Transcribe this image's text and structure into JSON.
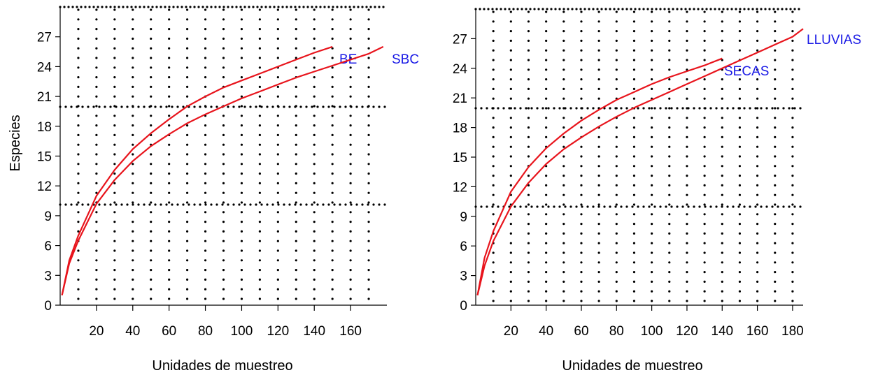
{
  "chart_data": [
    {
      "type": "line",
      "title": "",
      "xlabel": "Unidades de muestreo",
      "ylabel": "Especies",
      "xlim": [
        0,
        180
      ],
      "ylim": [
        0,
        30
      ],
      "xticks": [
        20,
        40,
        60,
        80,
        100,
        120,
        140,
        160
      ],
      "yticks": [
        0,
        3,
        6,
        9,
        12,
        15,
        18,
        21,
        24,
        27
      ],
      "grid": "dotted",
      "series_color": "#e8141c",
      "label_color": "#1a1ae6",
      "series": [
        {
          "name": "BE",
          "x": [
            1,
            5,
            10,
            20,
            30,
            40,
            50,
            60,
            70,
            80,
            90,
            100,
            110,
            120,
            130,
            140,
            150
          ],
          "y": [
            1,
            4.5,
            7,
            11,
            13.6,
            15.7,
            17.3,
            18.7,
            20,
            21,
            21.9,
            22.6,
            23.3,
            24,
            24.7,
            25.4,
            26
          ]
        },
        {
          "name": "SBC",
          "x": [
            1,
            5,
            10,
            20,
            30,
            40,
            50,
            60,
            70,
            80,
            90,
            100,
            110,
            120,
            130,
            140,
            150,
            160,
            170,
            178
          ],
          "y": [
            1,
            4.2,
            6.5,
            10.2,
            12.6,
            14.5,
            16,
            17.2,
            18.3,
            19.2,
            20,
            20.8,
            21.5,
            22.2,
            22.9,
            23.5,
            24.1,
            24.7,
            25.3,
            26
          ]
        }
      ]
    },
    {
      "type": "line",
      "title": "",
      "xlabel": "Unidades de muestreo",
      "ylabel": "",
      "xlim": [
        0,
        186
      ],
      "ylim": [
        0,
        30
      ],
      "xticks": [
        20,
        40,
        60,
        80,
        100,
        120,
        140,
        160,
        180
      ],
      "yticks": [
        0,
        3,
        6,
        9,
        12,
        15,
        18,
        21,
        24,
        27
      ],
      "grid": "dotted",
      "series_color": "#e8141c",
      "label_color": "#1a1ae6",
      "series": [
        {
          "name": "SECAS",
          "x": [
            1,
            5,
            10,
            20,
            30,
            40,
            50,
            60,
            70,
            80,
            90,
            100,
            110,
            120,
            130,
            140
          ],
          "y": [
            1,
            4.8,
            7.5,
            11.5,
            14,
            15.9,
            17.4,
            18.7,
            19.8,
            20.8,
            21.6,
            22.4,
            23.1,
            23.7,
            24.3,
            25
          ]
        },
        {
          "name": "LLUVIAS",
          "x": [
            1,
            5,
            10,
            20,
            30,
            40,
            50,
            60,
            70,
            80,
            90,
            100,
            110,
            120,
            130,
            140,
            150,
            160,
            170,
            180,
            186
          ],
          "y": [
            1,
            4,
            6.5,
            10,
            12.4,
            14.3,
            15.8,
            17,
            18.1,
            19.1,
            20,
            20.8,
            21.6,
            22.4,
            23.2,
            24,
            24.8,
            25.6,
            26.4,
            27.2,
            28
          ]
        }
      ]
    }
  ]
}
